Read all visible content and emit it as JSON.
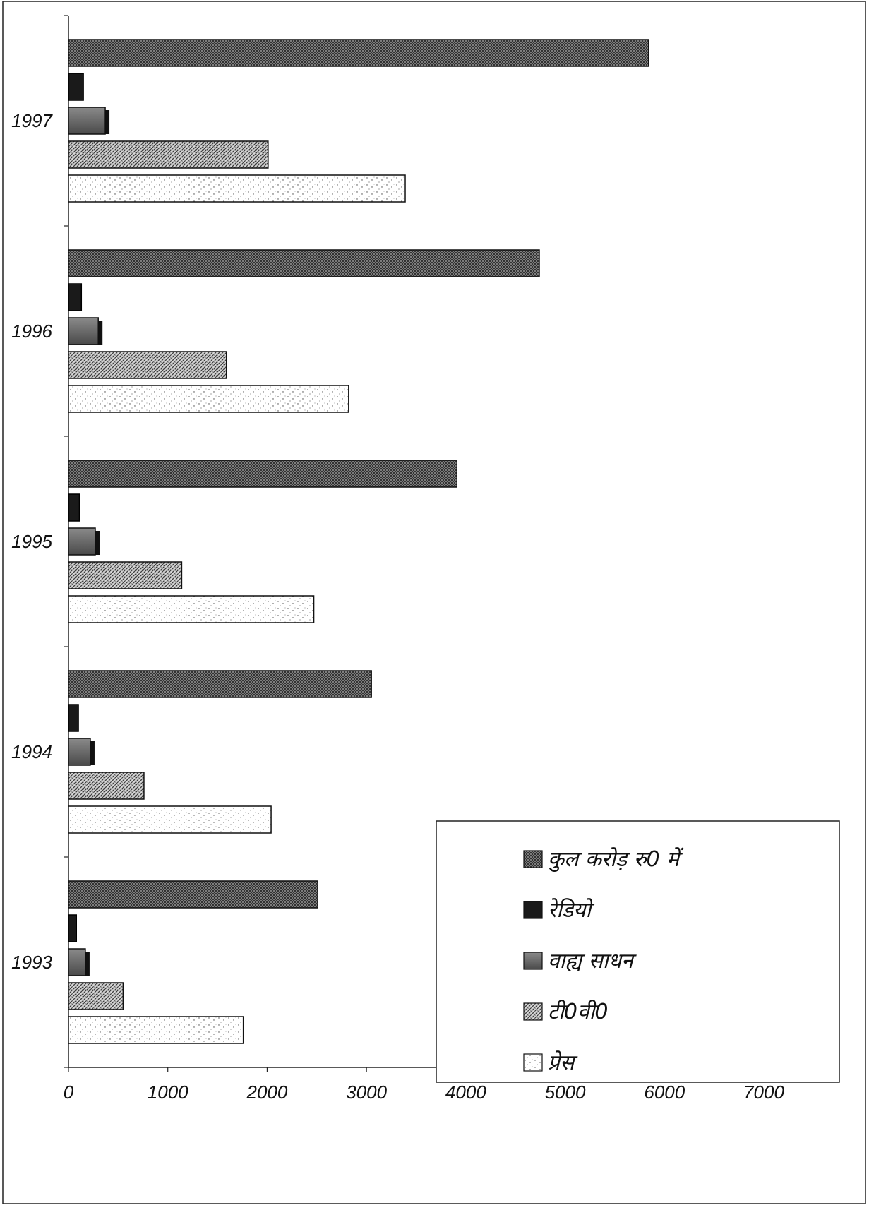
{
  "chart_data": {
    "type": "bar",
    "orientation": "horizontal",
    "categories": [
      "1993",
      "1994",
      "1995",
      "1996",
      "1997"
    ],
    "series": [
      {
        "name": "कुल करोड़ रु0 में",
        "values": [
          2510,
          3050,
          3910,
          4740,
          5840
        ],
        "pattern": "crosshatch-dense"
      },
      {
        "name": "रेडियो",
        "values": [
          80,
          100,
          110,
          130,
          150
        ],
        "pattern": "solid-black"
      },
      {
        "name": "वाह्य साधन",
        "values": [
          170,
          220,
          270,
          300,
          370
        ],
        "pattern": "grey-shadow"
      },
      {
        "name": "टी0वी0",
        "values": [
          550,
          760,
          1140,
          1590,
          2010
        ],
        "pattern": "diagonal-hatch"
      },
      {
        "name": "प्रेस",
        "values": [
          1760,
          2040,
          2470,
          2820,
          3390
        ],
        "pattern": "speckle"
      }
    ],
    "xlim": [
      0,
      7000
    ],
    "xticks": [
      "0",
      "1000",
      "2000",
      "3000",
      "4000",
      "5000",
      "6000",
      "7000"
    ],
    "title": "",
    "xlabel": "",
    "ylabel": "",
    "grid": false,
    "legend_position": "bottom-right"
  }
}
